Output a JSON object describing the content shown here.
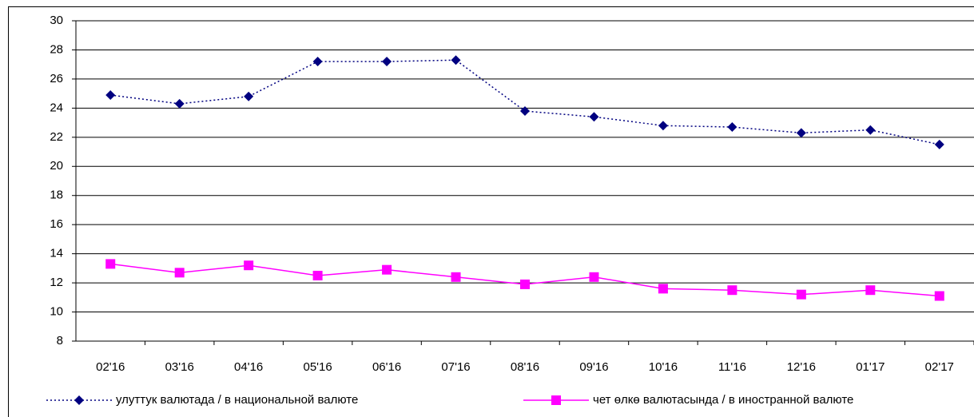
{
  "chart_data": {
    "type": "line",
    "categories": [
      "02'16",
      "03'16",
      "04'16",
      "05'16",
      "06'16",
      "07'16",
      "08'16",
      "09'16",
      "10'16",
      "11'16",
      "12'16",
      "01'17",
      "02'17"
    ],
    "series": [
      {
        "name": "улуттук валютада / в национальной валюте",
        "color": "#000080",
        "dash": "dotted",
        "marker": "diamond",
        "values": [
          24.9,
          24.3,
          24.8,
          27.2,
          27.2,
          27.3,
          23.8,
          23.4,
          22.8,
          22.7,
          22.3,
          22.5,
          21.5
        ]
      },
      {
        "name": "чет өлкө валютасында / в иностранной валюте",
        "color": "#ff00ff",
        "dash": "solid",
        "marker": "square",
        "values": [
          13.3,
          12.7,
          13.2,
          12.5,
          12.9,
          12.4,
          11.9,
          12.4,
          11.6,
          11.5,
          11.2,
          11.5,
          11.1
        ]
      }
    ],
    "ylim": [
      8,
      30
    ],
    "yticks": [
      8,
      10,
      12,
      14,
      16,
      18,
      20,
      22,
      24,
      26,
      28,
      30
    ],
    "grid": true,
    "legend": "bottom"
  }
}
